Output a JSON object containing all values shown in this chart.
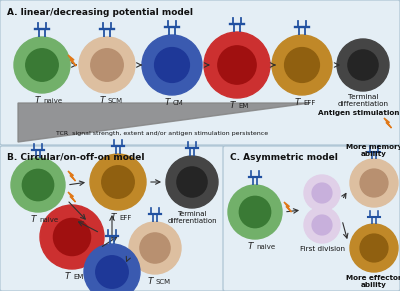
{
  "background_color": "#d8e8f0",
  "panel_bg": "#e4eef5",
  "panel_border": "#a8c0d0",
  "title_fontsize": 6.5,
  "label_fontsize": 6.5,
  "sub_fontsize": 5.0,
  "receptor_color": "#2050a0",
  "arrow_color": "#303030",
  "lightning_color": "#e07818",
  "panel_A_title": "A. linear/decreasing potential model",
  "panel_B_title": "B. Circular/on-off-on model",
  "panel_C_title": "C. Asymmetric model",
  "tcr_label": "TCR  signal strength, extent and/or antigen stimulation persistence",
  "antigen_label": "Antigen stimulation"
}
